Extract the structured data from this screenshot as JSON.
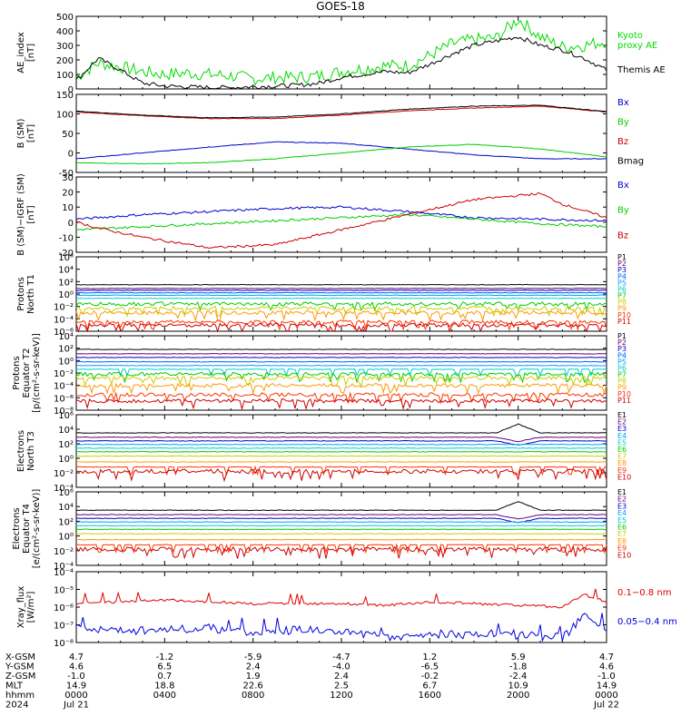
{
  "title": "GOES-18",
  "chart_data": [
    {
      "type": "line",
      "ylabel": [
        "AE_index",
        "[nT]"
      ],
      "ylim": [
        0,
        500
      ],
      "yticks": [
        "0",
        "100",
        "200",
        "300",
        "400",
        "500"
      ],
      "series": [
        {
          "name": "Kyoto\nproxy AE",
          "color": "#00dd00",
          "x": [
            0,
            1,
            2,
            3,
            4,
            5,
            6,
            7,
            8,
            9,
            10,
            11,
            12,
            13,
            14,
            15,
            16,
            17,
            18,
            19,
            20,
            21,
            22,
            23,
            24
          ],
          "values": [
            80,
            180,
            150,
            120,
            100,
            110,
            100,
            90,
            70,
            80,
            80,
            90,
            120,
            140,
            160,
            160,
            230,
            310,
            340,
            350,
            480,
            360,
            290,
            300,
            330
          ]
        },
        {
          "name": "Themis AE",
          "color": "#000000",
          "x": [
            0,
            1,
            2,
            3,
            4,
            5,
            6,
            7,
            8,
            9,
            10,
            11,
            12,
            13,
            14,
            15,
            16,
            17,
            18,
            19,
            20,
            21,
            22,
            23,
            24
          ],
          "values": [
            60,
            210,
            130,
            40,
            20,
            15,
            10,
            10,
            15,
            20,
            25,
            40,
            80,
            100,
            120,
            110,
            170,
            240,
            300,
            330,
            360,
            300,
            270,
            210,
            130
          ]
        }
      ]
    },
    {
      "type": "line",
      "ylabel": [
        "B (SM)",
        "[nT]"
      ],
      "ylim": [
        -50,
        150
      ],
      "yticks": [
        "-50",
        "0",
        "50",
        "100",
        "150"
      ],
      "series": [
        {
          "name": "Bx",
          "color": "#0000cc",
          "x": [
            0,
            3,
            6,
            9,
            12,
            15,
            18,
            21,
            24
          ],
          "values": [
            -15,
            0,
            15,
            28,
            25,
            10,
            -5,
            -15,
            -15
          ]
        },
        {
          "name": "By",
          "color": "#00cc00",
          "x": [
            0,
            3,
            6,
            9,
            12,
            15,
            18,
            21,
            24
          ],
          "values": [
            -25,
            -28,
            -25,
            -15,
            0,
            15,
            22,
            10,
            -10
          ]
        },
        {
          "name": "Bz",
          "color": "#cc0000",
          "x": [
            0,
            3,
            6,
            9,
            12,
            15,
            18,
            21,
            24
          ],
          "values": [
            105,
            95,
            88,
            88,
            97,
            108,
            115,
            120,
            105
          ]
        },
        {
          "name": "Bmag",
          "color": "#000000",
          "x": [
            0,
            3,
            6,
            9,
            12,
            15,
            18,
            21,
            24
          ],
          "values": [
            107,
            97,
            90,
            92,
            100,
            112,
            120,
            122,
            106
          ]
        }
      ]
    },
    {
      "type": "line",
      "ylabel": [
        "B (SM)−IGRF (SM)",
        "[nT]"
      ],
      "ylim": [
        -20,
        30
      ],
      "yticks": [
        "-20",
        "-10",
        "0",
        "10",
        "20",
        "30"
      ],
      "series": [
        {
          "name": "Bx",
          "color": "#0000cc",
          "x": [
            0,
            3,
            6,
            9,
            12,
            15,
            18,
            21,
            24
          ],
          "values": [
            2,
            5,
            7,
            9,
            10,
            7,
            3,
            2,
            1
          ]
        },
        {
          "name": "By",
          "color": "#00cc00",
          "x": [
            0,
            3,
            6,
            9,
            12,
            15,
            18,
            21,
            24
          ],
          "values": [
            -5,
            -3,
            -1,
            1,
            3,
            5,
            2,
            -1,
            -3
          ]
        },
        {
          "name": "Bz",
          "color": "#cc0000",
          "x": [
            0,
            1,
            3,
            6,
            9,
            12,
            15,
            18,
            21,
            22,
            24
          ],
          "values": [
            0,
            -4,
            -10,
            -17,
            -15,
            -5,
            5,
            15,
            19,
            12,
            3
          ]
        }
      ]
    },
    {
      "type": "line",
      "ylabel": [
        "Protons",
        "North T1"
      ],
      "log": true,
      "yticks": [
        "10⁶",
        "10⁴",
        "10²",
        "10⁰",
        "10⁻²",
        "10⁻⁴",
        "10⁻⁶"
      ],
      "series": [
        {
          "name": "P1",
          "color": "#000000",
          "level": 1.5
        },
        {
          "name": "P2",
          "color": "#6a0070",
          "level": 0.9
        },
        {
          "name": "P3",
          "color": "#0000cc",
          "level": 0.6
        },
        {
          "name": "P4",
          "color": "#0060ff",
          "level": 0.2
        },
        {
          "name": "P5",
          "color": "#00a0ff",
          "level": -0.2
        },
        {
          "name": "P6",
          "color": "#00cccc",
          "level": -0.7
        },
        {
          "name": "P7",
          "color": "#00cc00",
          "level": -1.6
        },
        {
          "name": "P8",
          "color": "#cccc00",
          "level": -2.3
        },
        {
          "name": "P9",
          "color": "#ff9900",
          "level": -3.0
        },
        {
          "name": "P10",
          "color": "#ff3300",
          "level": -4.5
        },
        {
          "name": "P11",
          "color": "#cc0000",
          "level": -5.0
        }
      ]
    },
    {
      "type": "line",
      "ylabel": [
        "Protons",
        "Equator T2",
        "[p/(cm²-s-sr-keV)]"
      ],
      "log": true,
      "yticks": [
        "10⁴",
        "10²",
        "10⁰",
        "10⁻²",
        "10⁻⁴",
        "10⁻⁶",
        "10⁻⁸"
      ],
      "series": [
        {
          "name": "P1",
          "color": "#000000",
          "level": 1.8
        },
        {
          "name": "P2",
          "color": "#6a0070",
          "level": 1.1
        },
        {
          "name": "P3",
          "color": "#0000cc",
          "level": 0.5
        },
        {
          "name": "P4",
          "color": "#0060ff",
          "level": -0.2
        },
        {
          "name": "P5",
          "color": "#00a0ff",
          "level": -0.8
        },
        {
          "name": "P6",
          "color": "#00cccc",
          "level": -1.4
        },
        {
          "name": "P7",
          "color": "#00cc00",
          "level": -2.2
        },
        {
          "name": "P8",
          "color": "#cccc00",
          "level": -2.8
        },
        {
          "name": "P9",
          "color": "#ff9900",
          "level": -4.0
        },
        {
          "name": "P10",
          "color": "#ff3300",
          "level": -5.5
        },
        {
          "name": "P11",
          "color": "#cc0000",
          "level": -6.5
        }
      ]
    },
    {
      "type": "line",
      "ylabel": [
        "Electrons",
        "North T3"
      ],
      "log": true,
      "yticks": [
        "10⁶",
        "10⁴",
        "10²",
        "10⁰",
        "10⁻²",
        "10⁻⁴"
      ],
      "series": [
        {
          "name": "E1",
          "color": "#000000",
          "level": 3.5
        },
        {
          "name": "E2",
          "color": "#6a0070",
          "level": 2.9
        },
        {
          "name": "E3",
          "color": "#0000cc",
          "level": 2.4
        },
        {
          "name": "E4",
          "color": "#00a0ff",
          "level": 1.9
        },
        {
          "name": "E5",
          "color": "#00cccc",
          "level": 1.4
        },
        {
          "name": "E6",
          "color": "#00cc00",
          "level": 0.9
        },
        {
          "name": "E7",
          "color": "#cccc00",
          "level": 0.3
        },
        {
          "name": "E8",
          "color": "#ff9900",
          "level": -0.5
        },
        {
          "name": "E9",
          "color": "#ff3300",
          "level": -1.2
        },
        {
          "name": "E10",
          "color": "#cc0000",
          "level": -1.8
        }
      ]
    },
    {
      "type": "line",
      "ylabel": [
        "Electrons",
        "Equator T4",
        "[e/(cm²-s-sr-keV)]"
      ],
      "log": true,
      "yticks": [
        "10⁶",
        "10⁴",
        "10²",
        "10⁰",
        "10⁻²",
        "10⁻⁴"
      ],
      "series": [
        {
          "name": "E1",
          "color": "#000000",
          "level": 3.5
        },
        {
          "name": "E2",
          "color": "#6a0070",
          "level": 2.9
        },
        {
          "name": "E3",
          "color": "#0000cc",
          "level": 2.4
        },
        {
          "name": "E4",
          "color": "#00a0ff",
          "level": 1.9
        },
        {
          "name": "E5",
          "color": "#00cccc",
          "level": 1.4
        },
        {
          "name": "E6",
          "color": "#00cc00",
          "level": 0.9
        },
        {
          "name": "E7",
          "color": "#cccc00",
          "level": 0.3
        },
        {
          "name": "E8",
          "color": "#ff9900",
          "level": -0.5
        },
        {
          "name": "E9",
          "color": "#ff3300",
          "level": -1.2
        },
        {
          "name": "E10",
          "color": "#cc0000",
          "level": -1.8
        }
      ]
    },
    {
      "type": "line",
      "ylabel": [
        "Xray_flux",
        "[W/m²]"
      ],
      "log": true,
      "yticks": [
        "10⁻⁴",
        "10⁻⁵",
        "10⁻⁶",
        "10⁻⁷",
        "10⁻⁸"
      ],
      "series": [
        {
          "name": "0.1−0.8 nm",
          "color": "#dd0000",
          "x": [
            0,
            2,
            4,
            6,
            8,
            10,
            12,
            14,
            16,
            18,
            20,
            22,
            23,
            24
          ],
          "values": [
            -5.8,
            -5.7,
            -5.6,
            -5.7,
            -5.8,
            -5.8,
            -5.8,
            -5.9,
            -5.7,
            -5.8,
            -5.9,
            -6.0,
            -5.3,
            -5.7
          ]
        },
        {
          "name": "0.05−0.4 nm",
          "color": "#0000dd",
          "x": [
            0,
            2,
            4,
            6,
            8,
            10,
            12,
            14,
            16,
            18,
            20,
            22,
            23,
            24
          ],
          "values": [
            -7.1,
            -7.3,
            -7.3,
            -7.2,
            -7.4,
            -7.3,
            -7.3,
            -7.7,
            -7.5,
            -7.6,
            -7.6,
            -7.7,
            -6.6,
            -7.1
          ]
        }
      ]
    }
  ],
  "ephemeris": {
    "rows": [
      {
        "label": "X-GSM",
        "values": [
          "4.7",
          "-1.2",
          "-5.9",
          "-4.7",
          "1.2",
          "5.9",
          "4.7"
        ]
      },
      {
        "label": "Y-GSM",
        "values": [
          "4.6",
          "6.5",
          "2.4",
          "-4.0",
          "-6.5",
          "-1.8",
          "4.6"
        ]
      },
      {
        "label": "Z-GSM",
        "values": [
          "-1.0",
          "0.7",
          "1.9",
          "2.4",
          "-0.2",
          "-2.4",
          "-1.0"
        ]
      },
      {
        "label": "MLT",
        "values": [
          "14.9",
          "18.8",
          "22.6",
          "2.5",
          "6.7",
          "10.9",
          "14.9"
        ]
      },
      {
        "label": "hhmm",
        "values": [
          "0000",
          "0400",
          "0800",
          "1200",
          "1600",
          "2000",
          "0000"
        ]
      },
      {
        "label": "2024",
        "values": [
          "Jul 21",
          "",
          "",
          "",
          "",
          "",
          "Jul 22"
        ]
      }
    ]
  }
}
